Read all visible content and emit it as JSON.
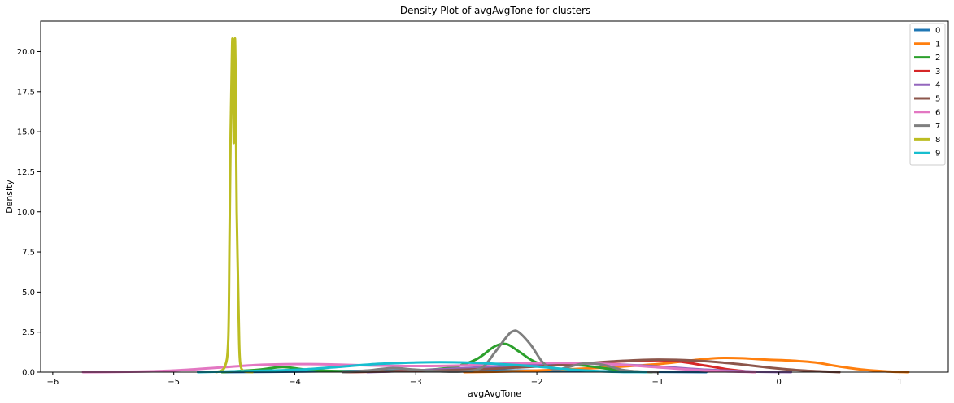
{
  "chart_data": {
    "type": "line",
    "title": "Density Plot of avgAvgTone for clusters",
    "xlabel": "avgAvgTone",
    "ylabel": "Density",
    "xlim": [
      -6.1,
      1.4
    ],
    "ylim": [
      0,
      21.9
    ],
    "xticks": [
      -6,
      -5,
      -4,
      -3,
      -2,
      -1,
      0,
      1
    ],
    "xtick_labels": [
      "−6",
      "−5",
      "−4",
      "−3",
      "−2",
      "−1",
      "0",
      "1"
    ],
    "yticks": [
      0,
      2.5,
      5,
      7.5,
      10,
      12.5,
      15,
      17.5,
      20
    ],
    "ytick_labels": [
      "0.0",
      "2.5",
      "5.0",
      "7.5",
      "10.0",
      "12.5",
      "15.0",
      "17.5",
      "20.0"
    ],
    "grid": false,
    "legend_position": "top-right",
    "series": [
      {
        "name": "0",
        "color": "#1f77b4",
        "x": [
          -4.6,
          -4.2,
          -3.8,
          -3.4,
          -3.0,
          -2.6,
          -2.2,
          -1.8,
          -1.4,
          -1.0,
          -0.6
        ],
        "y": [
          0.0,
          0.02,
          0.05,
          0.08,
          0.1,
          0.12,
          0.1,
          0.08,
          0.05,
          0.02,
          0.0
        ]
      },
      {
        "name": "1",
        "color": "#ff7f0e",
        "x": [
          -2.6,
          -2.2,
          -1.8,
          -1.4,
          -1.0,
          -0.7,
          -0.5,
          -0.3,
          -0.1,
          0.1,
          0.3,
          0.5,
          0.7,
          0.9,
          1.07
        ],
        "y": [
          0.0,
          0.05,
          0.15,
          0.3,
          0.5,
          0.75,
          0.88,
          0.87,
          0.78,
          0.72,
          0.6,
          0.35,
          0.15,
          0.04,
          0.0
        ]
      },
      {
        "name": "2",
        "color": "#2ca02c",
        "x": [
          -4.6,
          -4.3,
          -4.1,
          -3.9,
          -3.6,
          -3.3,
          -3.0,
          -2.7,
          -2.5,
          -2.35,
          -2.25,
          -2.15,
          -2.0,
          -1.8,
          -1.6,
          -1.4,
          -1.2,
          -1.05
        ],
        "y": [
          0.0,
          0.15,
          0.32,
          0.15,
          0.05,
          0.05,
          0.1,
          0.3,
          0.8,
          1.6,
          1.75,
          1.3,
          0.6,
          0.5,
          0.4,
          0.2,
          0.05,
          0.0
        ]
      },
      {
        "name": "3",
        "color": "#d62728",
        "x": [
          -3.6,
          -3.2,
          -2.8,
          -2.4,
          -2.0,
          -1.6,
          -1.2,
          -0.9,
          -0.6,
          -0.4,
          -0.2
        ],
        "y": [
          0.0,
          0.05,
          0.15,
          0.25,
          0.4,
          0.55,
          0.7,
          0.72,
          0.4,
          0.15,
          0.0
        ]
      },
      {
        "name": "4",
        "color": "#9467bd",
        "x": [
          -3.4,
          -3.0,
          -2.6,
          -2.2,
          -1.8,
          -1.4,
          -1.0,
          -0.6,
          -0.2,
          0.1
        ],
        "y": [
          0.0,
          0.1,
          0.25,
          0.4,
          0.55,
          0.5,
          0.35,
          0.15,
          0.03,
          0.0
        ]
      },
      {
        "name": "5",
        "color": "#8c564b",
        "x": [
          -3.6,
          -3.2,
          -2.8,
          -2.4,
          -2.0,
          -1.6,
          -1.3,
          -1.0,
          -0.7,
          -0.4,
          -0.1,
          0.2,
          0.5
        ],
        "y": [
          0.0,
          0.05,
          0.1,
          0.2,
          0.35,
          0.55,
          0.7,
          0.78,
          0.72,
          0.55,
          0.3,
          0.1,
          0.0
        ]
      },
      {
        "name": "6",
        "color": "#e377c2",
        "x": [
          -5.75,
          -5.3,
          -5.0,
          -4.6,
          -4.3,
          -4.0,
          -3.7,
          -3.4,
          -3.0,
          -2.6,
          -2.2,
          -1.8,
          -1.4,
          -1.0,
          -0.6,
          -0.2
        ],
        "y": [
          0.0,
          0.03,
          0.1,
          0.3,
          0.45,
          0.5,
          0.48,
          0.42,
          0.38,
          0.42,
          0.55,
          0.58,
          0.5,
          0.3,
          0.1,
          0.0
        ]
      },
      {
        "name": "7",
        "color": "#7f7f7f",
        "x": [
          -3.6,
          -3.4,
          -3.2,
          -3.0,
          -2.8,
          -2.6,
          -2.45,
          -2.35,
          -2.25,
          -2.2,
          -2.15,
          -2.05,
          -1.95,
          -1.85,
          -1.75,
          -1.6,
          -1.45,
          -1.3,
          -1.15,
          -1.0
        ],
        "y": [
          0.0,
          0.1,
          0.25,
          0.15,
          0.05,
          0.05,
          0.3,
          1.2,
          2.2,
          2.55,
          2.5,
          1.7,
          0.6,
          0.15,
          0.3,
          0.55,
          0.45,
          0.15,
          0.03,
          0.0
        ]
      },
      {
        "name": "8",
        "color": "#bcbd22",
        "x": [
          -4.65,
          -4.58,
          -4.55,
          -4.54,
          -4.53,
          -4.52,
          -4.515,
          -4.51,
          -4.505,
          -4.5,
          -4.495,
          -4.49,
          -4.485,
          -4.48,
          -4.47,
          -4.46,
          -4.45,
          -4.42,
          -4.35
        ],
        "y": [
          0.0,
          0.3,
          2.0,
          8.0,
          15.0,
          19.5,
          20.8,
          19.0,
          14.3,
          18.0,
          20.8,
          19.0,
          14.5,
          10.0,
          6.0,
          2.0,
          0.5,
          0.05,
          0.0
        ]
      },
      {
        "name": "9",
        "color": "#17becf",
        "x": [
          -4.8,
          -4.5,
          -4.2,
          -3.9,
          -3.6,
          -3.3,
          -3.0,
          -2.8,
          -2.6,
          -2.3,
          -2.0,
          -1.7,
          -1.4,
          -1.1
        ],
        "y": [
          0.0,
          0.05,
          0.1,
          0.18,
          0.35,
          0.52,
          0.6,
          0.62,
          0.6,
          0.5,
          0.35,
          0.15,
          0.03,
          0.0
        ]
      }
    ]
  }
}
